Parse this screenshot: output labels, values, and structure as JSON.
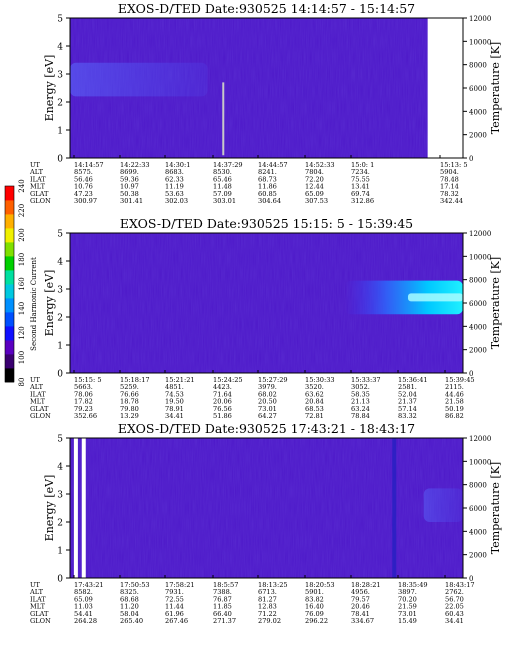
{
  "chart_data": [
    {
      "type": "heatmap",
      "title": "EXOS-D/TED  Date:930525  14:14:57 - 15:14:57",
      "ylabel": "Energy [eV]",
      "y2label": "Temperature [K]",
      "ylim": [
        0,
        5
      ],
      "y2lim": [
        0,
        12000
      ],
      "yticks": [
        "0",
        "1",
        "2",
        "3",
        "4",
        "5"
      ],
      "y2ticks": [
        "0",
        "2000",
        "4000",
        "6000",
        "8000",
        "10000",
        "12000"
      ],
      "data_end_fraction": 0.91,
      "hot_band": {
        "x_from": 0.0,
        "x_to": 0.35,
        "e_lo": 2.2,
        "e_hi": 3.4,
        "strength": 0.55
      },
      "marker_line": {
        "x": 0.39,
        "e_lo": 0.1,
        "e_hi": 2.7
      },
      "orbit_labels": [
        "UT",
        "ALT",
        "ILAT",
        "MLT",
        "GLAT",
        "GLON"
      ],
      "orbit_columns": [
        [
          "14:14:57",
          "8575.",
          "56.46",
          "10.76",
          "47.23",
          "300.97"
        ],
        [
          "14:22:33",
          "8699.",
          "59.36",
          "10.97",
          "50.38",
          "301.41"
        ],
        [
          "14:30:1",
          "8683.",
          "62.33",
          "11.19",
          "53.63",
          "302.03"
        ],
        [
          "14:37:29",
          "8530.",
          "65.46",
          "11.48",
          "57.09",
          "303.01"
        ],
        [
          "14:44:57",
          "8241.",
          "68.73",
          "11.86",
          "60.85",
          "304.64"
        ],
        [
          "14:52:33",
          "7804.",
          "72.20",
          "12.44",
          "65.09",
          "307.53"
        ],
        [
          "15:0: 1",
          "7234.",
          "75.55",
          "13.41",
          "69.74",
          "312.86"
        ],
        [
          "15:13: 5",
          "5904.",
          "78.48",
          "17.14",
          "78.32",
          "342.44"
        ]
      ]
    },
    {
      "type": "heatmap",
      "title": "EXOS-D/TED  Date:930525  15:15: 5 - 15:39:45",
      "ylabel": "Energy [eV]",
      "y2label": "Temperature [K]",
      "ylim": [
        0,
        5
      ],
      "y2lim": [
        0,
        12000
      ],
      "yticks": [
        "0",
        "1",
        "2",
        "3",
        "4",
        "5"
      ],
      "y2ticks": [
        "0",
        "2000",
        "4000",
        "6000",
        "8000",
        "10000",
        "12000"
      ],
      "data_end_fraction": 1.0,
      "hot_band": {
        "x_from": 0.7,
        "x_to": 1.0,
        "e_lo": 2.1,
        "e_hi": 3.3,
        "strength": 1.0
      },
      "orbit_labels": [
        "UT",
        "ALT",
        "ILAT",
        "MLT",
        "GLAT",
        "GLON"
      ],
      "orbit_columns": [
        [
          "15:15: 5",
          "5663.",
          "78.06",
          "17.82",
          "79.23",
          "352.66"
        ],
        [
          "15:18:17",
          "5259.",
          "76.66",
          "18.78",
          "79.80",
          "13.29"
        ],
        [
          "15:21:21",
          "4851.",
          "74.53",
          "19.50",
          "78.91",
          "34.41"
        ],
        [
          "15:24:25",
          "4423.",
          "71.64",
          "20.06",
          "76.56",
          "51.86"
        ],
        [
          "15:27:29",
          "3979.",
          "68.02",
          "20.50",
          "73.01",
          "64.27"
        ],
        [
          "15:30:33",
          "3520.",
          "63.62",
          "20.84",
          "68.53",
          "72.81"
        ],
        [
          "15:33:37",
          "3052.",
          "58.35",
          "21.13",
          "63.24",
          "78.84"
        ],
        [
          "15:36:41",
          "2581.",
          "52.04",
          "21.37",
          "57.14",
          "83.32"
        ],
        [
          "15:39:45",
          "2115.",
          "44.46",
          "21.58",
          "50.19",
          "86.82"
        ]
      ]
    },
    {
      "type": "heatmap",
      "title": "EXOS-D/TED  Date:930525  17:43:21 - 18:43:17",
      "ylabel": "Energy [eV]",
      "y2label": "Temperature [K]",
      "ylim": [
        0,
        5
      ],
      "y2lim": [
        0,
        12000
      ],
      "yticks": [
        "0",
        "1",
        "2",
        "3",
        "4",
        "5"
      ],
      "y2ticks": [
        "0",
        "2000",
        "4000",
        "6000",
        "8000",
        "10000",
        "12000"
      ],
      "data_end_fraction": 1.0,
      "gap_columns": [
        0.015,
        0.035
      ],
      "hot_band": {
        "x_from": 0.9,
        "x_to": 1.0,
        "e_lo": 2.0,
        "e_hi": 3.2,
        "strength": 0.45
      },
      "orbit_labels": [
        "UT",
        "ALT",
        "ILAT",
        "MLT",
        "GLAT",
        "GLON"
      ],
      "orbit_columns": [
        [
          "17:43:21",
          "8582.",
          "65.09",
          "11.03",
          "54.41",
          "264.28"
        ],
        [
          "17:50:53",
          "8325.",
          "68.68",
          "11.20",
          "58.04",
          "265.40"
        ],
        [
          "17:58:21",
          "7931.",
          "72.55",
          "11.44",
          "61.96",
          "267.46"
        ],
        [
          "18:5:57",
          "7388.",
          "76.87",
          "11.85",
          "66.40",
          "271.37"
        ],
        [
          "18:13:25",
          "6713.",
          "81.27",
          "12.83",
          "71.22",
          "279.02"
        ],
        [
          "18:20:53",
          "5901.",
          "83.82",
          "16.40",
          "76.09",
          "296.22"
        ],
        [
          "18:28:21",
          "4956.",
          "79.57",
          "20.46",
          "78.41",
          "334.67"
        ],
        [
          "18:35:49",
          "3897.",
          "70.20",
          "21.59",
          "73.01",
          "15.49"
        ],
        [
          "18:43:17",
          "2762.",
          "56.70",
          "22.05",
          "60.43",
          "34.41"
        ]
      ]
    }
  ],
  "colorbar": {
    "label": "Second Harmonic Current",
    "ticks": [
      "80",
      "100",
      "120",
      "140",
      "160",
      "180",
      "200",
      "220",
      "240"
    ],
    "colors": [
      "#000000",
      "#3a0070",
      "#5a00c0",
      "#1010ff",
      "#0050ff",
      "#0090ff",
      "#00c8e0",
      "#00e0a0",
      "#00d000",
      "#80e000",
      "#f0f000",
      "#ffb000",
      "#ff6000",
      "#ff0000"
    ]
  }
}
